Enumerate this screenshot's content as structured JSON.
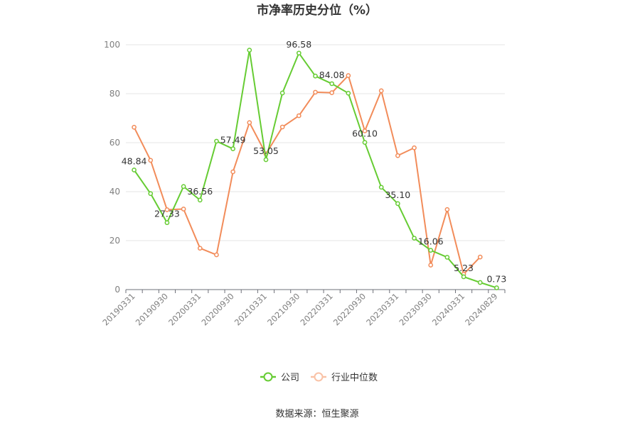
{
  "chart_data": {
    "type": "line",
    "title": "市净率历史分位（%）",
    "source": "数据来源：恒生聚源",
    "ylim": [
      0,
      100
    ],
    "yticks": [
      0,
      20,
      40,
      60,
      80,
      100
    ],
    "x_tick_labels": [
      "20190331",
      "20190930",
      "20200331",
      "20200930",
      "20210331",
      "20210930",
      "20220331",
      "20220930",
      "20230331",
      "20230930",
      "20240331",
      "20240829"
    ],
    "grid": true,
    "legend_position": "bottom",
    "series": [
      {
        "name": "公司",
        "color": "#66cc33",
        "values": [
          48.84,
          39.2,
          27.33,
          42.1,
          36.56,
          60.6,
          57.49,
          97.8,
          53.05,
          80.3,
          96.58,
          87.2,
          84.08,
          80.2,
          60.1,
          41.8,
          35.1,
          21.0,
          16.06,
          13.2,
          5.23,
          2.9,
          0.73
        ],
        "labels": {
          "0": "48.84",
          "2": "27.33",
          "4": "36.56",
          "6": "57.49",
          "8": "53.05",
          "10": "96.58",
          "12": "84.08",
          "14": "60.10",
          "16": "35.10",
          "18": "16.06",
          "20": "5.23",
          "22": "0.73"
        }
      },
      {
        "name": "行业中位数",
        "color": "#f28c5a",
        "values": [
          66.3,
          52.8,
          32.6,
          32.9,
          16.9,
          14.2,
          48.1,
          68.2,
          55.4,
          66.4,
          71.0,
          80.6,
          80.4,
          87.4,
          64.8,
          81.2,
          54.7,
          57.9,
          10.0,
          32.7,
          6.3,
          13.3,
          null
        ]
      }
    ]
  }
}
